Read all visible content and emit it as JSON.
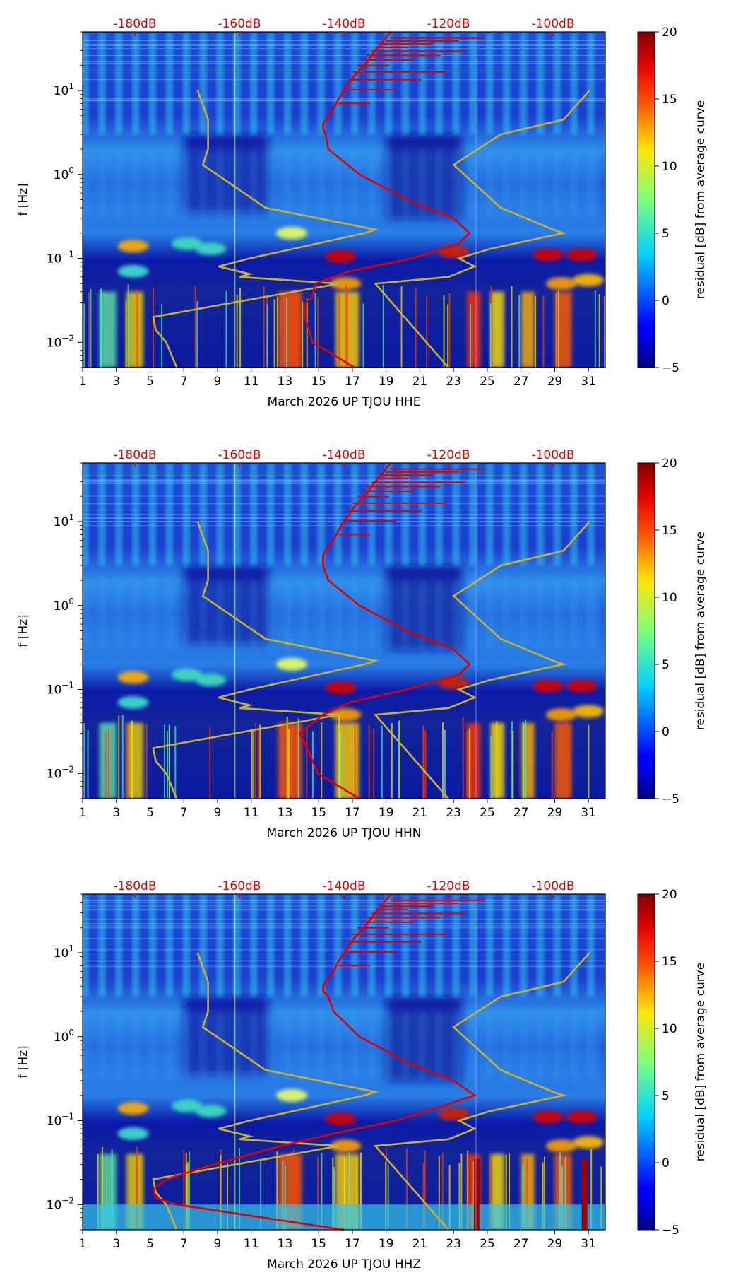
{
  "chart_data": [
    {
      "type": "heatmap",
      "xlabel": "March 2026 UP TJOU  HHE",
      "ylabel": "f [Hz]",
      "x_ticks": [
        "1",
        "3",
        "5",
        "7",
        "9",
        "11",
        "13",
        "15",
        "17",
        "19",
        "21",
        "23",
        "25",
        "27",
        "29",
        "31"
      ],
      "x_range": [
        1,
        32
      ],
      "y_range_hz": [
        0.005,
        50
      ],
      "y_ticks": [
        {
          "value": 0.01,
          "base": "10",
          "exp": "−2"
        },
        {
          "value": 0.1,
          "base": "10",
          "exp": "−1"
        },
        {
          "value": 1,
          "base": "10",
          "exp": "0"
        },
        {
          "value": 10,
          "base": "10",
          "exp": "1"
        }
      ],
      "db_ticks": [
        {
          "label": "-180dB",
          "value": -180
        },
        {
          "label": "-160dB",
          "value": -160
        },
        {
          "label": "-140dB",
          "value": -140
        },
        {
          "label": "-120dB",
          "value": -120
        },
        {
          "label": "-100dB",
          "value": -100
        }
      ],
      "db_range": [
        -190,
        -90
      ],
      "colorbar": {
        "label": "residual [dB] from average curve",
        "range": [
          -5,
          20
        ],
        "ticks": [
          "−5",
          "0",
          "5",
          "10",
          "15",
          "20"
        ]
      },
      "average_curve_db": {
        "freq": [
          0.005,
          0.01,
          0.02,
          0.03,
          0.035,
          0.05,
          0.07,
          0.1,
          0.15,
          0.2,
          0.3,
          0.5,
          1,
          2,
          3,
          3.5,
          4,
          5,
          6,
          8,
          10,
          15,
          20,
          30,
          50
        ],
        "db": [
          -138,
          -146,
          -147.5,
          -147.3,
          -146,
          -145.5,
          -139,
          -127,
          -118,
          -116,
          -119,
          -128,
          -137,
          -143,
          -143.5,
          -144,
          -144,
          -143,
          -142,
          -141,
          -140,
          -138,
          -136,
          -134,
          -131
        ]
      },
      "noise_model_db": {
        "freq": [
          0.005,
          0.01,
          0.014,
          0.02,
          0.05,
          0.06,
          0.065,
          0.08,
          0.1,
          0.2,
          0.22,
          0.4,
          1.3,
          2,
          3,
          4.5,
          10
        ],
        "db": [
          -172,
          -174,
          -176,
          -176.5,
          -141,
          -160,
          -158,
          -164,
          -158,
          -136,
          -134,
          -155,
          -167,
          -166,
          -166,
          -166,
          -168
        ]
      },
      "noise_model_db_high": {
        "freq": [
          0.005,
          0.05,
          0.06,
          0.08,
          0.1,
          0.13,
          0.2,
          0.22,
          0.4,
          1.3,
          3,
          4.5,
          10
        ],
        "db": [
          -120,
          -134,
          -120,
          -115,
          -118,
          -112,
          -98,
          -100,
          -110,
          -119,
          -110,
          -98,
          -93
        ]
      }
    },
    {
      "type": "heatmap",
      "xlabel": "March 2026 UP TJOU  HHN",
      "ylabel": "f [Hz]",
      "x_ticks": [
        "1",
        "3",
        "5",
        "7",
        "9",
        "11",
        "13",
        "15",
        "17",
        "19",
        "21",
        "23",
        "25",
        "27",
        "29",
        "31"
      ],
      "x_range": [
        1,
        32
      ],
      "y_range_hz": [
        0.005,
        50
      ],
      "y_ticks": [
        {
          "value": 0.01,
          "base": "10",
          "exp": "−2"
        },
        {
          "value": 0.1,
          "base": "10",
          "exp": "−1"
        },
        {
          "value": 1,
          "base": "10",
          "exp": "0"
        },
        {
          "value": 10,
          "base": "10",
          "exp": "1"
        }
      ],
      "db_ticks": [
        {
          "label": "-180dB",
          "value": -180
        },
        {
          "label": "-160dB",
          "value": -160
        },
        {
          "label": "-140dB",
          "value": -140
        },
        {
          "label": "-120dB",
          "value": -120
        },
        {
          "label": "-100dB",
          "value": -100
        }
      ],
      "db_range": [
        -190,
        -90
      ],
      "colorbar": {
        "label": "residual [dB] from average curve",
        "range": [
          -5,
          20
        ],
        "ticks": [
          "−5",
          "0",
          "5",
          "10",
          "15",
          "20"
        ]
      },
      "average_curve_db": {
        "freq": [
          0.005,
          0.01,
          0.02,
          0.03,
          0.05,
          0.07,
          0.1,
          0.15,
          0.2,
          0.3,
          0.5,
          1,
          2,
          3,
          3.5,
          4,
          5,
          6,
          8,
          10,
          15,
          20,
          30,
          50
        ],
        "db": [
          -137,
          -145,
          -147,
          -148.5,
          -144,
          -139,
          -128,
          -118,
          -116,
          -119,
          -128,
          -137,
          -143,
          -144,
          -144,
          -144,
          -143,
          -142,
          -141,
          -140,
          -138,
          -136,
          -134,
          -131
        ]
      },
      "noise_model_db": {
        "freq": [
          0.005,
          0.01,
          0.014,
          0.02,
          0.05,
          0.06,
          0.065,
          0.08,
          0.1,
          0.2,
          0.22,
          0.4,
          1.3,
          2,
          3,
          4.5,
          10
        ],
        "db": [
          -172,
          -174,
          -176,
          -176.5,
          -141,
          -160,
          -158,
          -164,
          -158,
          -136,
          -134,
          -155,
          -167,
          -166,
          -166,
          -166,
          -168
        ]
      },
      "noise_model_db_high": {
        "freq": [
          0.005,
          0.05,
          0.06,
          0.08,
          0.1,
          0.13,
          0.2,
          0.22,
          0.4,
          1.3,
          3,
          4.5,
          10
        ],
        "db": [
          -120,
          -134,
          -120,
          -115,
          -118,
          -112,
          -98,
          -100,
          -110,
          -119,
          -110,
          -98,
          -93
        ]
      }
    },
    {
      "type": "heatmap",
      "xlabel": "March 2026 UP TJOU  HHZ",
      "ylabel": "f [Hz]",
      "x_ticks": [
        "1",
        "3",
        "5",
        "7",
        "9",
        "11",
        "13",
        "15",
        "17",
        "19",
        "21",
        "23",
        "25",
        "27",
        "29",
        "31"
      ],
      "x_range": [
        1,
        32
      ],
      "y_range_hz": [
        0.005,
        50
      ],
      "y_ticks": [
        {
          "value": 0.01,
          "base": "10",
          "exp": "−2"
        },
        {
          "value": 0.1,
          "base": "10",
          "exp": "−1"
        },
        {
          "value": 1,
          "base": "10",
          "exp": "0"
        },
        {
          "value": 10,
          "base": "10",
          "exp": "1"
        }
      ],
      "db_ticks": [
        {
          "label": "-180dB",
          "value": -180
        },
        {
          "label": "-160dB",
          "value": -160
        },
        {
          "label": "-140dB",
          "value": -140
        },
        {
          "label": "-120dB",
          "value": -120
        },
        {
          "label": "-100dB",
          "value": -100
        }
      ],
      "db_range": [
        -190,
        -90
      ],
      "colorbar": {
        "label": "residual [dB] from average curve",
        "range": [
          -5,
          20
        ],
        "ticks": [
          "−5",
          "0",
          "5",
          "10",
          "15",
          "20"
        ]
      },
      "average_curve_db": {
        "freq": [
          0.005,
          0.01,
          0.012,
          0.015,
          0.02,
          0.03,
          0.05,
          0.07,
          0.1,
          0.15,
          0.2,
          0.3,
          0.5,
          1,
          2,
          3,
          3.5,
          4,
          5,
          6,
          8,
          10,
          15,
          20,
          30,
          50
        ],
        "db": [
          -140,
          -172,
          -176,
          -176.5,
          -174,
          -165,
          -152,
          -142,
          -130,
          -121,
          -115,
          -119,
          -128,
          -137,
          -142,
          -143,
          -144,
          -144,
          -143,
          -142,
          -141,
          -140,
          -138,
          -136,
          -134,
          -131
        ]
      },
      "noise_model_db": {
        "freq": [
          0.005,
          0.01,
          0.014,
          0.02,
          0.05,
          0.06,
          0.065,
          0.08,
          0.1,
          0.2,
          0.22,
          0.4,
          1.3,
          2,
          3,
          4.5,
          10
        ],
        "db": [
          -172,
          -174,
          -176,
          -176.5,
          -141,
          -160,
          -158,
          -164,
          -158,
          -136,
          -134,
          -155,
          -167,
          -166,
          -166,
          -166,
          -168
        ]
      },
      "noise_model_db_high": {
        "freq": [
          0.005,
          0.05,
          0.06,
          0.08,
          0.1,
          0.13,
          0.2,
          0.22,
          0.4,
          1.3,
          3,
          4.5,
          10
        ],
        "db": [
          -120,
          -134,
          -120,
          -115,
          -118,
          -112,
          -98,
          -100,
          -110,
          -119,
          -110,
          -98,
          -93
        ]
      }
    }
  ]
}
